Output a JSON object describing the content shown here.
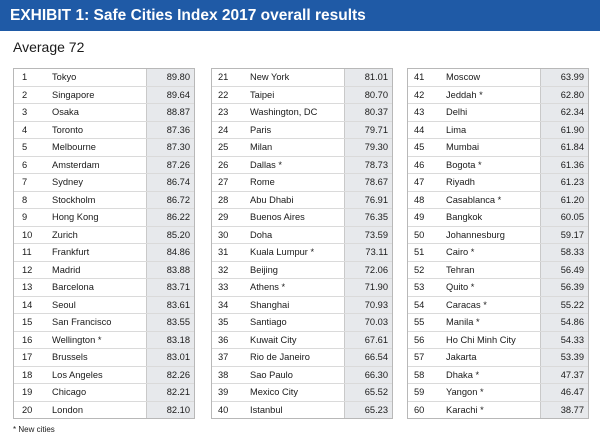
{
  "header": {
    "title": "EXHIBIT 1: Safe Cities Index 2017 overall results"
  },
  "average": "Average 72",
  "footnote": "* New cities",
  "chart_data": {
    "type": "table",
    "title": "EXHIBIT 1: Safe Cities Index 2017 overall results",
    "subtitle": "Average 72",
    "columns": [
      [
        {
          "rank": "1",
          "city": "Tokyo",
          "score": "89.80"
        },
        {
          "rank": "2",
          "city": "Singapore",
          "score": "89.64"
        },
        {
          "rank": "3",
          "city": "Osaka",
          "score": "88.87"
        },
        {
          "rank": "4",
          "city": "Toronto",
          "score": "87.36"
        },
        {
          "rank": "5",
          "city": "Melbourne",
          "score": "87.30"
        },
        {
          "rank": "6",
          "city": "Amsterdam",
          "score": "87.26"
        },
        {
          "rank": "7",
          "city": "Sydney",
          "score": "86.74"
        },
        {
          "rank": "8",
          "city": "Stockholm",
          "score": "86.72"
        },
        {
          "rank": "9",
          "city": "Hong Kong",
          "score": "86.22"
        },
        {
          "rank": "10",
          "city": "Zurich",
          "score": "85.20"
        },
        {
          "rank": "11",
          "city": "Frankfurt",
          "score": "84.86"
        },
        {
          "rank": "12",
          "city": "Madrid",
          "score": "83.88"
        },
        {
          "rank": "13",
          "city": "Barcelona",
          "score": "83.71"
        },
        {
          "rank": "14",
          "city": "Seoul",
          "score": "83.61"
        },
        {
          "rank": "15",
          "city": "San Francisco",
          "score": "83.55"
        },
        {
          "rank": "16",
          "city": "Wellington *",
          "score": "83.18"
        },
        {
          "rank": "17",
          "city": "Brussels",
          "score": "83.01"
        },
        {
          "rank": "18",
          "city": "Los Angeles",
          "score": "82.26"
        },
        {
          "rank": "19",
          "city": "Chicago",
          "score": "82.21"
        },
        {
          "rank": "20",
          "city": "London",
          "score": "82.10"
        }
      ],
      [
        {
          "rank": "21",
          "city": "New York",
          "score": "81.01"
        },
        {
          "rank": "22",
          "city": "Taipei",
          "score": "80.70"
        },
        {
          "rank": "23",
          "city": "Washington, DC",
          "score": "80.37"
        },
        {
          "rank": "24",
          "city": "Paris",
          "score": "79.71"
        },
        {
          "rank": "25",
          "city": "Milan",
          "score": "79.30"
        },
        {
          "rank": "26",
          "city": "Dallas *",
          "score": "78.73"
        },
        {
          "rank": "27",
          "city": "Rome",
          "score": "78.67"
        },
        {
          "rank": "28",
          "city": "Abu Dhabi",
          "score": "76.91"
        },
        {
          "rank": "29",
          "city": "Buenos Aires",
          "score": "76.35"
        },
        {
          "rank": "30",
          "city": "Doha",
          "score": "73.59"
        },
        {
          "rank": "31",
          "city": "Kuala Lumpur *",
          "score": "73.11"
        },
        {
          "rank": "32",
          "city": "Beijing",
          "score": "72.06"
        },
        {
          "rank": "33",
          "city": "Athens *",
          "score": "71.90"
        },
        {
          "rank": "34",
          "city": "Shanghai",
          "score": "70.93"
        },
        {
          "rank": "35",
          "city": "Santiago",
          "score": "70.03"
        },
        {
          "rank": "36",
          "city": "Kuwait City",
          "score": "67.61"
        },
        {
          "rank": "37",
          "city": "Rio de Janeiro",
          "score": "66.54"
        },
        {
          "rank": "38",
          "city": "Sao Paulo",
          "score": "66.30"
        },
        {
          "rank": "39",
          "city": "Mexico City",
          "score": "65.52"
        },
        {
          "rank": "40",
          "city": "Istanbul",
          "score": "65.23"
        }
      ],
      [
        {
          "rank": "41",
          "city": "Moscow",
          "score": "63.99"
        },
        {
          "rank": "42",
          "city": "Jeddah *",
          "score": "62.80"
        },
        {
          "rank": "43",
          "city": "Delhi",
          "score": "62.34"
        },
        {
          "rank": "44",
          "city": "Lima",
          "score": "61.90"
        },
        {
          "rank": "45",
          "city": "Mumbai",
          "score": "61.84"
        },
        {
          "rank": "46",
          "city": "Bogota *",
          "score": "61.36"
        },
        {
          "rank": "47",
          "city": "Riyadh",
          "score": "61.23"
        },
        {
          "rank": "48",
          "city": "Casablanca *",
          "score": "61.20"
        },
        {
          "rank": "49",
          "city": "Bangkok",
          "score": "60.05"
        },
        {
          "rank": "50",
          "city": "Johannesburg",
          "score": "59.17"
        },
        {
          "rank": "51",
          "city": "Cairo *",
          "score": "58.33"
        },
        {
          "rank": "52",
          "city": "Tehran",
          "score": "56.49"
        },
        {
          "rank": "53",
          "city": "Quito *",
          "score": "56.39"
        },
        {
          "rank": "54",
          "city": "Caracas *",
          "score": "55.22"
        },
        {
          "rank": "55",
          "city": "Manila *",
          "score": "54.86"
        },
        {
          "rank": "56",
          "city": "Ho Chi Minh City",
          "score": "54.33"
        },
        {
          "rank": "57",
          "city": "Jakarta",
          "score": "53.39"
        },
        {
          "rank": "58",
          "city": "Dhaka *",
          "score": "47.37"
        },
        {
          "rank": "59",
          "city": "Yangon *",
          "score": "46.47"
        },
        {
          "rank": "60",
          "city": "Karachi *",
          "score": "38.77"
        }
      ]
    ]
  }
}
